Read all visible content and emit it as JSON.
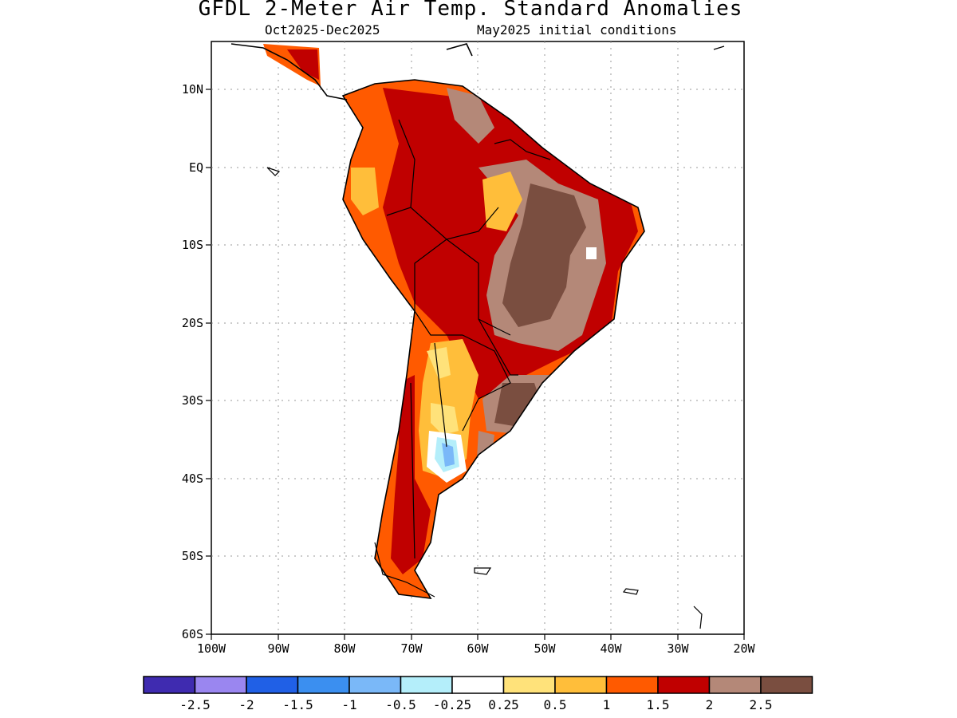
{
  "title": "GFDL 2-Meter Air Temp. Standard Anomalies",
  "subtitle_left": "Oct2025-Dec2025",
  "subtitle_right": "May2025 initial conditions",
  "map": {
    "lat_labels": [
      "10N",
      "EQ",
      "10S",
      "20S",
      "30S",
      "40S",
      "50S",
      "60S"
    ],
    "lon_labels": [
      "100W",
      "90W",
      "80W",
      "70W",
      "60W",
      "50W",
      "40W",
      "30W",
      "20W"
    ],
    "lon_range": [
      -100,
      -20
    ],
    "lat_range": [
      -60,
      15
    ]
  },
  "legend": {
    "colors": [
      "#3f2bb0",
      "#9a86f0",
      "#2060e6",
      "#3b8ff0",
      "#7ab8f8",
      "#b4eefa",
      "#ffffff",
      "#ffe27a",
      "#ffbe3a",
      "#ff5a00",
      "#c00000",
      "#b48878",
      "#7a4e40"
    ],
    "labels": [
      "-2.5",
      "-2",
      "-1.5",
      "-1",
      "-0.5",
      "-0.25",
      "0.25",
      "0.5",
      "1",
      "1.5",
      "2",
      "2.5"
    ]
  }
}
